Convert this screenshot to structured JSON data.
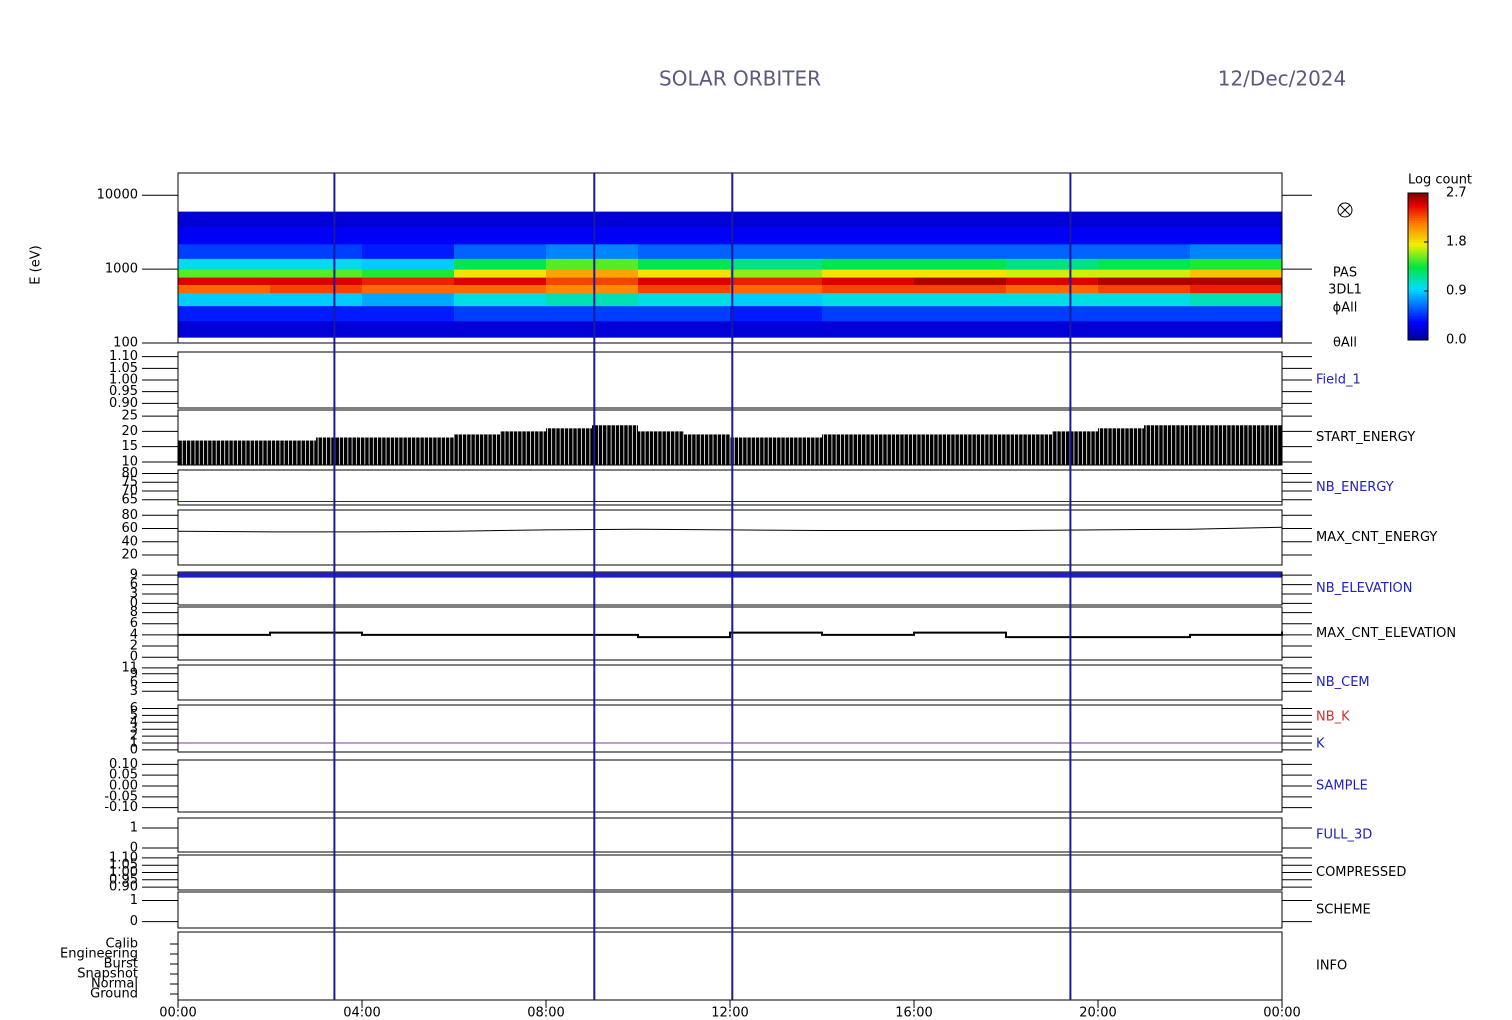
{
  "chart_data": [
    {
      "type": "spectrogram",
      "title": "SOLAR ORBITER",
      "subtitle": "12/Dec/2024",
      "ylabel": "E (eV)",
      "log_scale": true,
      "xlim": [
        0,
        24
      ],
      "ylim": [
        100,
        20000
      ],
      "yticks": [
        100,
        1000,
        10000
      ],
      "x_bins": [
        0,
        2,
        4,
        6,
        8,
        10,
        12,
        14,
        16,
        18,
        20,
        22,
        24
      ],
      "energy_bins": [
        120,
        200,
        320,
        480,
        620,
        780,
        1000,
        1400,
        2200,
        3800,
        6000
      ],
      "counts": [
        [
          0.2,
          0.4,
          0.9,
          2.2,
          2.5,
          1.5,
          1.0,
          0.5,
          0.3,
          0.2
        ],
        [
          0.2,
          0.4,
          0.9,
          2.3,
          2.5,
          1.5,
          1.0,
          0.5,
          0.3,
          0.2
        ],
        [
          0.2,
          0.4,
          0.8,
          2.2,
          2.4,
          1.4,
          0.9,
          0.4,
          0.3,
          0.2
        ],
        [
          0.2,
          0.5,
          1.0,
          2.2,
          2.5,
          1.8,
          1.3,
          0.6,
          0.3,
          0.2
        ],
        [
          0.2,
          0.5,
          1.1,
          2.1,
          2.3,
          2.0,
          1.5,
          0.7,
          0.3,
          0.2
        ],
        [
          0.2,
          0.5,
          1.0,
          2.3,
          2.5,
          1.8,
          1.3,
          0.6,
          0.3,
          0.2
        ],
        [
          0.2,
          0.4,
          0.9,
          2.2,
          2.4,
          1.6,
          1.2,
          0.6,
          0.3,
          0.2
        ],
        [
          0.2,
          0.5,
          1.0,
          2.3,
          2.5,
          1.8,
          1.3,
          0.6,
          0.3,
          0.2
        ],
        [
          0.2,
          0.5,
          1.0,
          2.3,
          2.6,
          1.8,
          1.3,
          0.6,
          0.3,
          0.2
        ],
        [
          0.2,
          0.5,
          1.0,
          2.2,
          2.5,
          1.7,
          1.2,
          0.6,
          0.3,
          0.2
        ],
        [
          0.2,
          0.5,
          1.0,
          2.3,
          2.6,
          1.7,
          1.3,
          0.6,
          0.3,
          0.2
        ],
        [
          0.2,
          0.5,
          1.1,
          2.4,
          2.6,
          1.9,
          1.4,
          0.7,
          0.3,
          0.2
        ]
      ],
      "side_labels": [
        "PAS",
        "3DL1",
        "ϕAll",
        "θAll"
      ],
      "colorbar": {
        "title": "Log count",
        "lim": [
          0,
          2.7
        ],
        "ticks": [
          {
            "value": 0,
            "label": "0.0"
          },
          {
            "value": 0.9,
            "label": "0.9"
          },
          {
            "value": 1.8,
            "label": "1.8"
          },
          {
            "value": 2.7,
            "label": "2.7"
          }
        ]
      },
      "markers": [
        3.4,
        9.05,
        12.05,
        19.4
      ],
      "marker_color": "#1a1aa0"
    },
    {
      "type": "line",
      "name": "Field_1",
      "label_color": "#2020c0",
      "xlim": [
        0,
        24
      ],
      "ylim": [
        0.88,
        1.12
      ],
      "yticks": [
        {
          "value": 0.9,
          "label": "0.90"
        },
        {
          "value": 0.95,
          "label": "0.95"
        },
        {
          "value": 1,
          "label": "1.00"
        },
        {
          "value": 1.05,
          "label": "1.05"
        },
        {
          "value": 1.1,
          "label": "1.10"
        }
      ]
    },
    {
      "type": "bar",
      "name": "START_ENERGY",
      "label_color": "#000000",
      "xlim": [
        0,
        24
      ],
      "ylim": [
        9,
        27
      ],
      "yticks": [
        10,
        15,
        20,
        25
      ],
      "color": "#000000",
      "x": [
        0.5,
        1.5,
        2.5,
        3.5,
        4.5,
        5.5,
        6.5,
        7.5,
        8.5,
        9.5,
        10.5,
        11.5,
        12.5,
        13.5,
        14.5,
        15.5,
        16.5,
        17.5,
        18.5,
        19.5,
        20.5,
        21.5,
        22.5,
        23.5
      ],
      "values": [
        17,
        17,
        17,
        18,
        18,
        18,
        19,
        20,
        21,
        22,
        20,
        19,
        18,
        18,
        19,
        19,
        19,
        19,
        19,
        20,
        21,
        22,
        22,
        22
      ]
    },
    {
      "type": "line",
      "name": "NB_ENERGY",
      "label_color": "#2020c0",
      "xlim": [
        0,
        24
      ],
      "ylim": [
        62,
        82
      ],
      "yticks": [
        65,
        70,
        75,
        80
      ],
      "series": [
        {
          "color": "#2020c0",
          "width": 1,
          "x": [
            0,
            24
          ],
          "values": [
            64,
            64
          ]
        }
      ]
    },
    {
      "type": "line",
      "name": "MAX_CNT_ENERGY",
      "label_color": "#000000",
      "xlim": [
        0,
        24
      ],
      "ylim": [
        5,
        88
      ],
      "yticks": [
        20,
        40,
        60,
        80
      ],
      "series": [
        {
          "color": "#000000",
          "width": 1,
          "x": [
            0,
            2,
            4,
            6,
            8,
            10,
            12,
            14,
            16,
            18,
            20,
            22,
            24
          ],
          "values": [
            56,
            55,
            55,
            56,
            58,
            59,
            58,
            57,
            57,
            57,
            58,
            59,
            62
          ]
        }
      ]
    },
    {
      "type": "line",
      "name": "NB_ELEVATION",
      "label_color": "#2020c0",
      "xlim": [
        0,
        24
      ],
      "ylim": [
        -0.5,
        10
      ],
      "yticks": [
        0,
        3,
        6,
        9
      ],
      "series": [
        {
          "color": "#2020c0",
          "width": 5,
          "x": [
            0,
            24
          ],
          "values": [
            9,
            9
          ]
        }
      ]
    },
    {
      "type": "line",
      "name": "MAX_CNT_ELEVATION",
      "label_color": "#000000",
      "xlim": [
        0,
        24
      ],
      "ylim": [
        -0.5,
        9
      ],
      "yticks": [
        0,
        2,
        4,
        6,
        8
      ],
      "step": true,
      "series": [
        {
          "color": "#000000",
          "width": 2,
          "x": [
            0,
            2,
            4,
            6,
            8,
            10,
            12,
            14,
            16,
            18,
            20,
            22,
            24
          ],
          "values": [
            4,
            4.4,
            4,
            4,
            4,
            3.6,
            4.4,
            4,
            4.4,
            3.6,
            3.6,
            4,
            4.6
          ]
        }
      ]
    },
    {
      "type": "line",
      "name": "NB_CEM",
      "label_color": "#2020c0",
      "xlim": [
        0,
        24
      ],
      "ylim": [
        0,
        12
      ],
      "yticks": [
        3,
        6,
        9,
        11
      ]
    },
    {
      "type": "line",
      "name": "NB_K",
      "label_color": "#d03030",
      "second_name": "K",
      "second_color": "#2020c0",
      "xlim": [
        0,
        24
      ],
      "ylim": [
        -0.3,
        6.5
      ],
      "yticks": [
        0,
        1,
        2,
        3,
        4,
        5,
        6
      ],
      "series": [
        {
          "color": "#9030a0",
          "width": 1,
          "x": [
            0,
            24
          ],
          "values": [
            1,
            1
          ]
        }
      ]
    },
    {
      "type": "line",
      "name": "SAMPLE",
      "label_color": "#2020c0",
      "xlim": [
        0,
        24
      ],
      "ylim": [
        -0.12,
        0.12
      ],
      "yticks": [
        {
          "value": -0.1,
          "label": "-0.10"
        },
        {
          "value": -0.05,
          "label": "-0.05"
        },
        {
          "value": 0,
          "label": "0.00"
        },
        {
          "value": 0.05,
          "label": "0.05"
        },
        {
          "value": 0.1,
          "label": "0.10"
        }
      ]
    },
    {
      "type": "line",
      "name": "FULL_3D",
      "label_color": "#2020c0",
      "xlim": [
        0,
        24
      ],
      "ylim": [
        -0.2,
        1.5
      ],
      "yticks": [
        0,
        1
      ]
    },
    {
      "type": "line",
      "name": "COMPRESSED",
      "label_color": "#000000",
      "xlim": [
        0,
        24
      ],
      "ylim": [
        0.88,
        1.12
      ],
      "yticks": [
        {
          "value": 0.9,
          "label": "0.90"
        },
        {
          "value": 0.95,
          "label": "0.95"
        },
        {
          "value": 1,
          "label": "1.00"
        },
        {
          "value": 1.05,
          "label": "1.05"
        },
        {
          "value": 1.1,
          "label": "1.10"
        }
      ]
    },
    {
      "type": "line",
      "name": "SCHEME",
      "label_color": "#000000",
      "xlim": [
        0,
        24
      ],
      "ylim": [
        -0.3,
        1.4
      ],
      "yticks": [
        0,
        1
      ]
    },
    {
      "type": "categorical",
      "name": "INFO",
      "label_color": "#000000",
      "xlim": [
        0,
        24
      ],
      "categories": [
        "Calib",
        "Engineering",
        "Burst",
        "Snapshot",
        "Normal",
        "Ground"
      ],
      "xticks": [
        {
          "value": 0,
          "label": "00:00"
        },
        {
          "value": 4,
          "label": "04:00"
        },
        {
          "value": 8,
          "label": "08:00"
        },
        {
          "value": 12,
          "label": "12:00"
        },
        {
          "value": 16,
          "label": "16:00"
        },
        {
          "value": 20,
          "label": "20:00"
        },
        {
          "value": 24,
          "label": "00:00"
        }
      ]
    }
  ]
}
